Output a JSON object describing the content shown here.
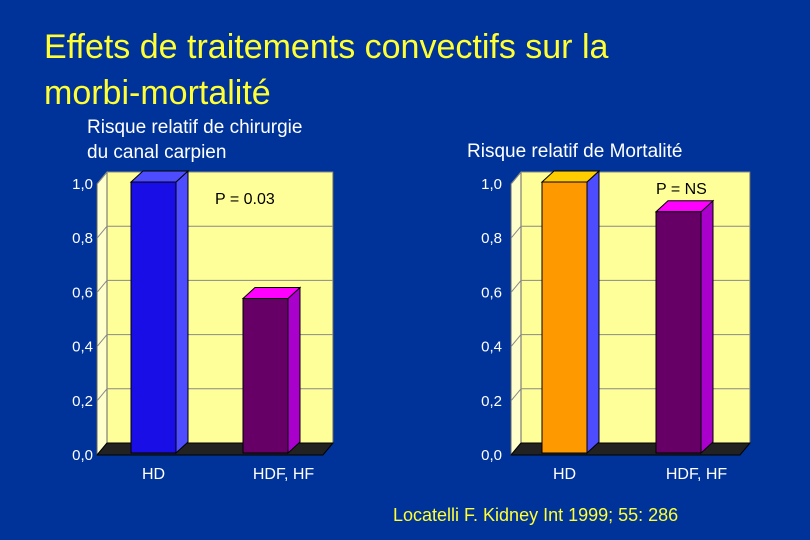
{
  "slide": {
    "title_line1": "Effets de traitements convectifs sur la",
    "title_line2": "morbi-mortalité",
    "citation": "Locatelli F. Kidney Int 1999; 55: 286"
  },
  "colors": {
    "background": "#003399",
    "title": "#ffff33",
    "plot_back": "#ffff99",
    "plot_side": "#ffffcc",
    "floor": "#222222"
  },
  "chart_data": [
    {
      "type": "bar",
      "title_line1": "Risque relatif de chirurgie",
      "title_line2": "du canal carpien",
      "categories": [
        "HD",
        "HDF, HF"
      ],
      "values": [
        1.0,
        0.57
      ],
      "ylim": [
        0,
        1.0
      ],
      "yticks": [
        "0,0",
        "0,2",
        "0,4",
        "0,6",
        "0,8",
        "1,0"
      ],
      "annotation": "P = 0.03",
      "bar_colors": [
        {
          "front": "#1a0ee6",
          "side": "#4d4dff",
          "top": "#4d4dff"
        },
        {
          "front": "#660066",
          "side": "#aa00cc",
          "top": "#ff00ff"
        }
      ],
      "grid": true,
      "legend": "none"
    },
    {
      "type": "bar",
      "title_line1": "Risque relatif de Mortalité",
      "title_line2": "",
      "categories": [
        "HD",
        "HDF, HF"
      ],
      "values": [
        1.0,
        0.89
      ],
      "ylim": [
        0,
        1.0
      ],
      "yticks": [
        "0,0",
        "0,2",
        "0,4",
        "0,6",
        "0,8",
        "1,0"
      ],
      "annotation": "P = NS",
      "bar_colors": [
        {
          "front": "#ff9900",
          "side": "#4d4dff",
          "top": "#ffcc00"
        },
        {
          "front": "#660066",
          "side": "#aa00cc",
          "top": "#ff00ff"
        }
      ],
      "grid": true,
      "legend": "none"
    }
  ]
}
